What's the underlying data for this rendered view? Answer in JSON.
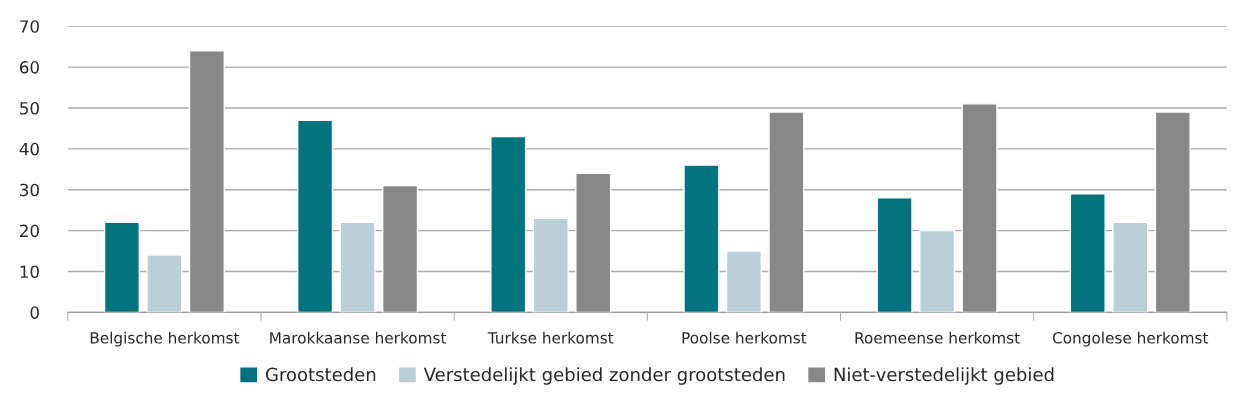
{
  "chart_data": {
    "type": "bar",
    "categories": [
      "Belgische herkomst",
      "Marokkaanse herkomst",
      "Turkse herkomst",
      "Poolse herkomst",
      "Roemeense herkomst",
      "Congolese herkomst"
    ],
    "series": [
      {
        "name": "Grootsteden",
        "color": "#00737f",
        "values": [
          22,
          47,
          43,
          36,
          28,
          29
        ]
      },
      {
        "name": "Verstedelijkt gebied zonder grootsteden",
        "color": "#b9d0d7",
        "values": [
          14,
          22,
          23,
          15,
          20,
          22
        ]
      },
      {
        "name": "Niet-verstedelijkt gebied",
        "color": "#888888",
        "values": [
          64,
          31,
          34,
          49,
          51,
          49
        ]
      }
    ],
    "ylim": [
      0,
      70
    ],
    "yticks": [
      0,
      10,
      20,
      30,
      40,
      50,
      60,
      70
    ],
    "grid": "y",
    "legend": "bottom"
  }
}
